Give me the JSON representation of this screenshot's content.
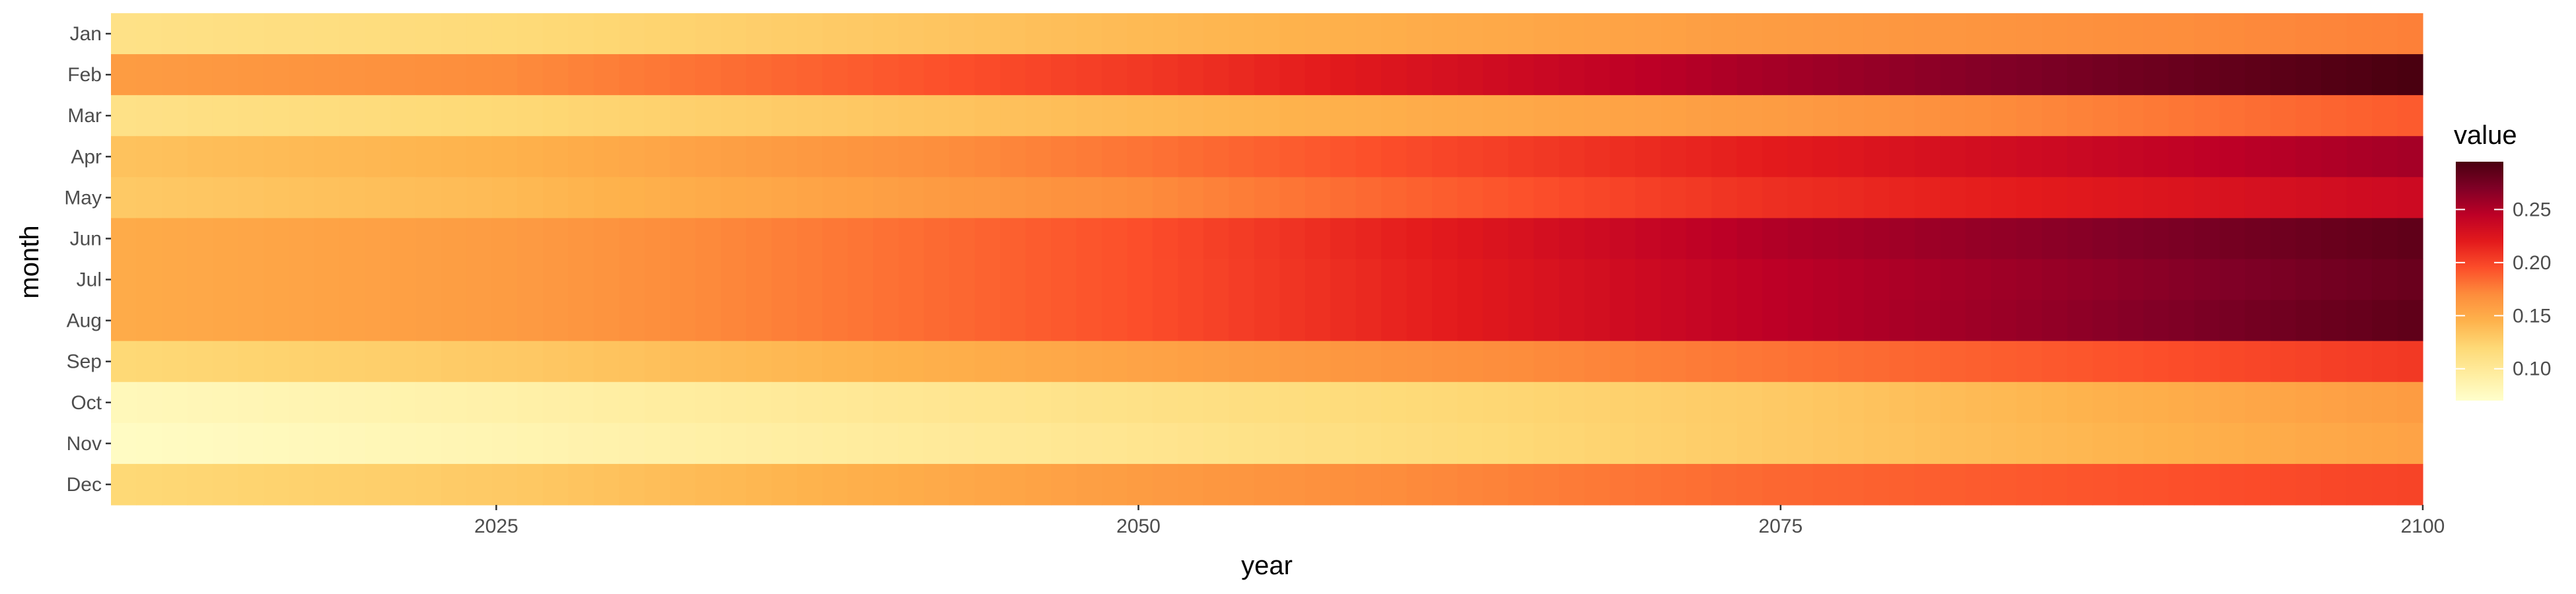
{
  "chart_data": {
    "type": "heatmap",
    "title": "",
    "xlabel": "year",
    "ylabel": "month",
    "legend_title": "value",
    "legend_position": "right",
    "x_range": [
      2010,
      2100
    ],
    "x_ticks": [
      2025,
      2050,
      2075,
      2100
    ],
    "months": [
      "Jan",
      "Feb",
      "Mar",
      "Apr",
      "May",
      "Jun",
      "Jul",
      "Aug",
      "Sep",
      "Oct",
      "Nov",
      "Dec"
    ],
    "value_range": [
      0.07,
      0.295
    ],
    "legend_ticks": [
      0.1,
      0.15,
      0.2,
      0.25
    ],
    "color_scale": [
      "#FFFFCC",
      "#FFEDA0",
      "#FED976",
      "#FEB24C",
      "#FD8D3C",
      "#FC4E2A",
      "#E31A1C",
      "#BD0026",
      "#800026",
      "#4A0010"
    ],
    "series": [
      {
        "name": "Jan",
        "anchors_x": [
          2010,
          2025,
          2050,
          2075,
          2100
        ],
        "anchors_value": [
          0.11,
          0.118,
          0.14,
          0.16,
          0.175
        ]
      },
      {
        "name": "Feb",
        "anchors_x": [
          2010,
          2025,
          2050,
          2075,
          2100
        ],
        "anchors_value": [
          0.16,
          0.17,
          0.205,
          0.255,
          0.295
        ]
      },
      {
        "name": "Mar",
        "anchors_x": [
          2010,
          2025,
          2050,
          2075,
          2100
        ],
        "anchors_value": [
          0.11,
          0.12,
          0.14,
          0.16,
          0.19
        ]
      },
      {
        "name": "Apr",
        "anchors_x": [
          2010,
          2025,
          2050,
          2075,
          2100
        ],
        "anchors_value": [
          0.135,
          0.145,
          0.18,
          0.22,
          0.255
        ]
      },
      {
        "name": "May",
        "anchors_x": [
          2010,
          2025,
          2050,
          2075,
          2100
        ],
        "anchors_value": [
          0.13,
          0.14,
          0.17,
          0.21,
          0.235
        ]
      },
      {
        "name": "Jun",
        "anchors_x": [
          2010,
          2025,
          2050,
          2075,
          2100
        ],
        "anchors_value": [
          0.15,
          0.16,
          0.195,
          0.25,
          0.285
        ]
      },
      {
        "name": "Jul",
        "anchors_x": [
          2010,
          2025,
          2050,
          2075,
          2100
        ],
        "anchors_value": [
          0.15,
          0.16,
          0.195,
          0.245,
          0.28
        ]
      },
      {
        "name": "Aug",
        "anchors_x": [
          2010,
          2025,
          2050,
          2075,
          2100
        ],
        "anchors_value": [
          0.15,
          0.16,
          0.195,
          0.245,
          0.285
        ]
      },
      {
        "name": "Sep",
        "anchors_x": [
          2010,
          2025,
          2050,
          2075,
          2100
        ],
        "anchors_value": [
          0.12,
          0.13,
          0.155,
          0.18,
          0.205
        ]
      },
      {
        "name": "Oct",
        "anchors_x": [
          2010,
          2025,
          2050,
          2075,
          2100
        ],
        "anchors_value": [
          0.08,
          0.09,
          0.11,
          0.13,
          0.16
        ]
      },
      {
        "name": "Nov",
        "anchors_x": [
          2010,
          2025,
          2050,
          2075,
          2100
        ],
        "anchors_value": [
          0.075,
          0.085,
          0.105,
          0.13,
          0.155
        ]
      },
      {
        "name": "Dec",
        "anchors_x": [
          2010,
          2025,
          2050,
          2075,
          2100
        ],
        "anchors_value": [
          0.12,
          0.13,
          0.16,
          0.185,
          0.2
        ]
      }
    ]
  }
}
